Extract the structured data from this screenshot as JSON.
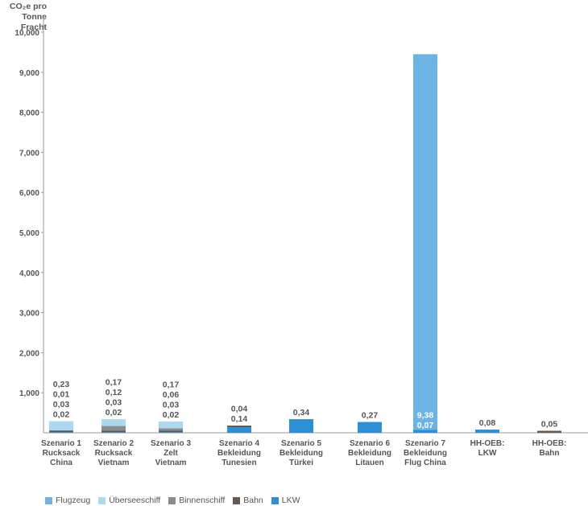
{
  "chart_data": {
    "type": "bar",
    "stacked": true,
    "ylabel_lines": [
      "CO₂e pro",
      "Tonne Fracht"
    ],
    "ylim": [
      0,
      10
    ],
    "yticks": [
      {
        "value": 1,
        "label": "1,000"
      },
      {
        "value": 2,
        "label": "2,000"
      },
      {
        "value": 3,
        "label": "3,000"
      },
      {
        "value": 4,
        "label": "4,000"
      },
      {
        "value": 5,
        "label": "5,000"
      },
      {
        "value": 6,
        "label": "6,000"
      },
      {
        "value": 7,
        "label": "7,000"
      },
      {
        "value": 8,
        "label": "8,000"
      },
      {
        "value": 9,
        "label": "9,000"
      },
      {
        "value": 10,
        "label": "10,000"
      }
    ],
    "categories": [
      [
        "Szenario 1",
        "Rucksack",
        "China"
      ],
      [
        "Szenario 2",
        "Rucksack",
        "Vietnam"
      ],
      [
        "Szenario 3",
        "Zelt",
        "Vietnam"
      ],
      [
        "Szenario 4",
        "Bekleidung",
        "Tunesien"
      ],
      [
        "Szenario 5",
        "Bekleidung",
        "Türkei"
      ],
      [
        "Szenario 6",
        "Bekleidung",
        "Litauen"
      ],
      [
        "Szenario 7",
        "Bekleidung",
        "Flug China"
      ],
      [
        "HH-OEB:",
        "LKW"
      ],
      [
        "HH-OEB:",
        "Bahn"
      ]
    ],
    "series": [
      {
        "name": "Flugzeug",
        "color": "#6cb4e4",
        "values": [
          0,
          0,
          0,
          0,
          0,
          0,
          9.38,
          0,
          0
        ]
      },
      {
        "name": "Überseeschiff",
        "color": "#acd8f0",
        "values": [
          0.23,
          0.17,
          0.17,
          0,
          0,
          0,
          0,
          0,
          0
        ]
      },
      {
        "name": "Binnenschiff",
        "color": "#8c8c8c",
        "values": [
          0.01,
          0.12,
          0.06,
          0,
          0,
          0,
          0,
          0,
          0
        ]
      },
      {
        "name": "Bahn",
        "color": "#66574f",
        "values": [
          0.03,
          0.03,
          0.03,
          0.04,
          0,
          0,
          0,
          0,
          0.05
        ]
      },
      {
        "name": "LKW",
        "color": "#2d8fd4",
        "values": [
          0.02,
          0.02,
          0.02,
          0.14,
          0.34,
          0.27,
          0.07,
          0.08,
          0
        ]
      }
    ],
    "value_labels": [
      [
        "0,23",
        "0,01",
        "0,03",
        "0,02"
      ],
      [
        "0,17",
        "0,12",
        "0,03",
        "0,02"
      ],
      [
        "0,17",
        "0,06",
        "0,03",
        "0,02"
      ],
      [
        "0,04",
        "0,14"
      ],
      [
        "0,34"
      ],
      [
        "0,27"
      ],
      [],
      [
        "0,08"
      ],
      [
        "0,05"
      ]
    ],
    "inner_labels": [
      [],
      [],
      [],
      [],
      [],
      [],
      [
        "9,38",
        "0,07"
      ],
      [],
      []
    ]
  }
}
